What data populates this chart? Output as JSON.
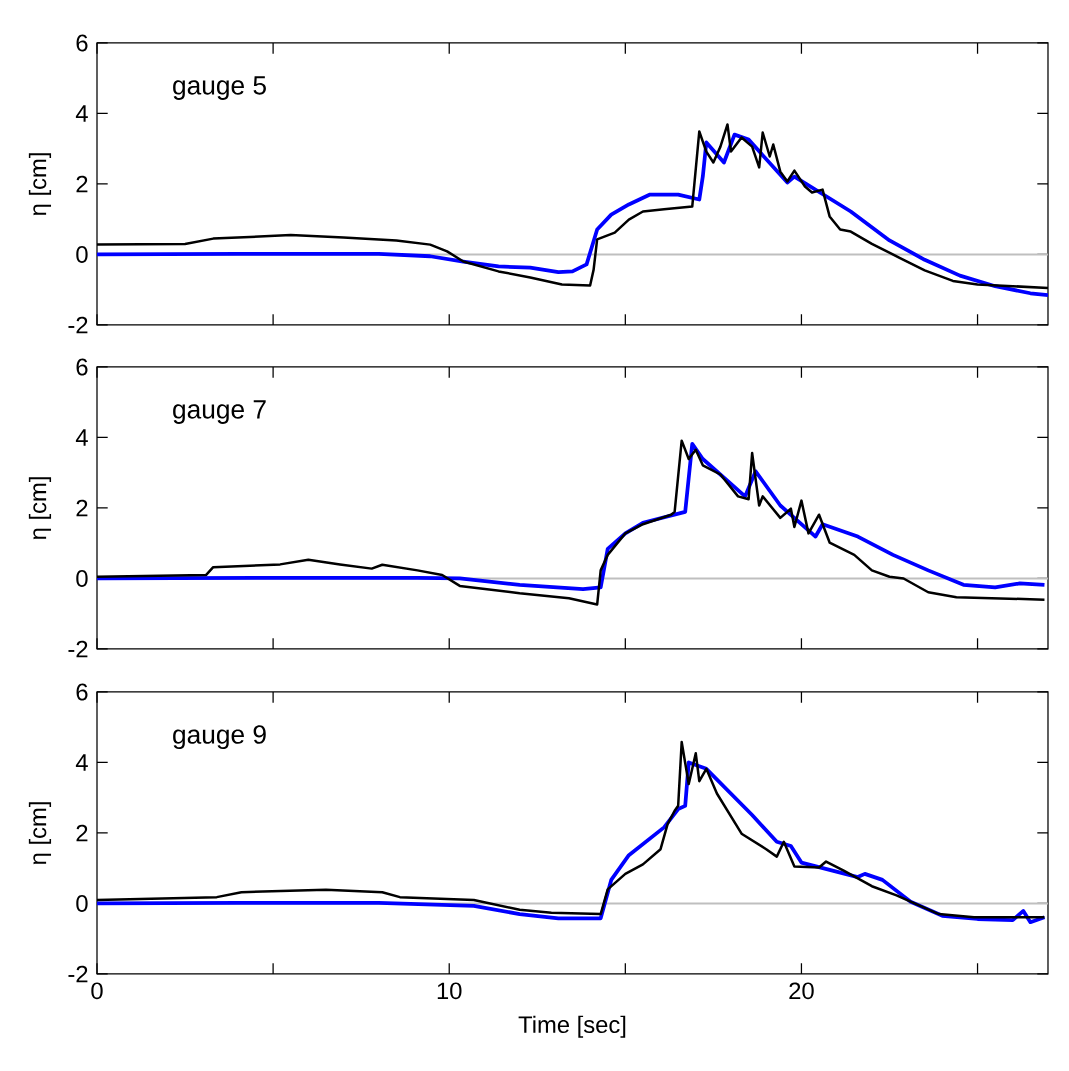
{
  "chart_data": [
    {
      "type": "line",
      "annotations": [
        "gauge 5"
      ],
      "ylabel": "η [cm]",
      "xlim": [
        0,
        27
      ],
      "ylim": [
        -2,
        6
      ],
      "xticks": [
        0,
        {
          "value": 5,
          "label": null
        },
        10,
        {
          "value": 15,
          "label": null
        },
        20,
        {
          "value": 25,
          "label": null
        }
      ],
      "yticks": [
        -2,
        0,
        2,
        4,
        6
      ],
      "tick_labels": "y",
      "ref_lines": [
        {
          "axis": "y",
          "value": 0,
          "color": "#bfbfbf"
        }
      ],
      "series": [
        {
          "color": "#000000",
          "x": [
            0,
            2.5,
            3.3,
            5.5,
            7,
            8.5,
            9.46,
            9.94,
            10.4,
            11.4,
            12.3,
            13.2,
            14.0,
            14.1,
            14.2,
            14.7,
            15.1,
            15.5,
            16.1,
            16.9,
            17.1,
            17.3,
            17.5,
            17.7,
            17.9,
            18.0,
            18.3,
            18.6,
            18.8,
            18.9,
            19.1,
            19.2,
            19.4,
            19.6,
            19.8,
            20.1,
            20.3,
            20.6,
            20.8,
            21.1,
            21.4,
            22.0,
            22.8,
            23.5,
            24.3,
            25.0,
            26.0,
            27.0
          ],
          "values": [
            0.28,
            0.3,
            0.45,
            0.55,
            0.48,
            0.4,
            0.28,
            0.09,
            -0.2,
            -0.48,
            -0.65,
            -0.85,
            -0.88,
            -0.43,
            0.43,
            0.62,
            0.99,
            1.22,
            1.28,
            1.36,
            3.49,
            2.92,
            2.61,
            3.06,
            3.69,
            2.92,
            3.32,
            3.06,
            2.47,
            3.46,
            2.78,
            3.12,
            2.35,
            2.07,
            2.38,
            1.93,
            1.76,
            1.84,
            1.08,
            0.71,
            0.65,
            0.3,
            -0.1,
            -0.45,
            -0.75,
            -0.85,
            -0.9,
            -0.95
          ]
        },
        {
          "color": "#0000ff",
          "x": [
            0,
            4,
            8,
            9.46,
            10.4,
            11.4,
            12.3,
            13.1,
            13.5,
            13.9,
            14.2,
            14.6,
            15.1,
            15.7,
            16.5,
            17.1,
            17.2,
            17.3,
            17.8,
            18.1,
            18.5,
            19.6,
            19.8,
            21.4,
            22.5,
            23.5,
            24.5,
            25.5,
            26.5,
            27.0
          ],
          "values": [
            0,
            0.02,
            0.02,
            -0.05,
            -0.2,
            -0.34,
            -0.37,
            -0.5,
            -0.48,
            -0.28,
            0.71,
            1.13,
            1.42,
            1.7,
            1.7,
            1.56,
            2.21,
            3.18,
            2.61,
            3.4,
            3.26,
            2.04,
            2.21,
            1.22,
            0.4,
            -0.15,
            -0.6,
            -0.9,
            -1.1,
            -1.15
          ]
        }
      ]
    },
    {
      "type": "line",
      "annotations": [
        "gauge 7"
      ],
      "ylabel": "η [cm]",
      "xlim": [
        0,
        27
      ],
      "ylim": [
        -2,
        6
      ],
      "xticks": [
        0,
        {
          "value": 5,
          "label": null
        },
        10,
        {
          "value": 15,
          "label": null
        },
        20,
        {
          "value": 25,
          "label": null
        }
      ],
      "yticks": [
        -2,
        0,
        2,
        4,
        6
      ],
      "tick_labels": "y",
      "ref_lines": [
        {
          "axis": "y",
          "value": 0,
          "color": "#bfbfbf"
        }
      ],
      "series": [
        {
          "color": "#000000",
          "x": [
            0,
            3.1,
            3.3,
            5.2,
            6.0,
            6.9,
            7.8,
            8.1,
            9.1,
            9.8,
            10.3,
            12.0,
            13.4,
            14.2,
            14.3,
            14.5,
            15.0,
            15.5,
            16.3,
            16.4,
            16.6,
            16.8,
            17.0,
            17.2,
            17.7,
            18.2,
            18.5,
            18.6,
            18.8,
            18.9,
            19.4,
            19.7,
            19.8,
            20.0,
            20.2,
            20.5,
            20.8,
            21.5,
            22.0,
            22.5,
            22.9,
            23.6,
            24.4,
            26.9
          ],
          "values": [
            0.05,
            0.1,
            0.32,
            0.4,
            0.53,
            0.4,
            0.28,
            0.39,
            0.23,
            0.1,
            -0.21,
            -0.42,
            -0.56,
            -0.74,
            0.23,
            0.67,
            1.28,
            1.54,
            1.81,
            1.89,
            3.91,
            3.39,
            3.65,
            3.21,
            2.95,
            2.33,
            2.25,
            3.56,
            2.07,
            2.33,
            1.72,
            1.98,
            1.46,
            2.21,
            1.28,
            1.81,
            1.02,
            0.67,
            0.23,
            0.05,
            0,
            -0.39,
            -0.53,
            -0.6
          ]
        },
        {
          "color": "#0000ff",
          "x": [
            0,
            5,
            9.1,
            10.3,
            12.0,
            13.8,
            14.3,
            14.5,
            15.0,
            15.5,
            16.7,
            16.9,
            17.2,
            18.4,
            18.7,
            19.4,
            20.4,
            20.6,
            21.6,
            22.6,
            23.6,
            24.6,
            25.5,
            26.2,
            26.9
          ],
          "values": [
            0,
            0.02,
            0.02,
            0,
            -0.18,
            -0.3,
            -0.25,
            0.84,
            1.28,
            1.58,
            1.89,
            3.82,
            3.39,
            2.33,
            3.04,
            2.07,
            1.19,
            1.54,
            1.19,
            0.67,
            0.23,
            -0.18,
            -0.25,
            -0.14,
            -0.18
          ]
        }
      ]
    },
    {
      "type": "line",
      "annotations": [
        "gauge 9"
      ],
      "ylabel": "η [cm]",
      "xlabel": "Time [sec]",
      "xlim": [
        0,
        27
      ],
      "ylim": [
        -2,
        6
      ],
      "xticks": [
        0,
        {
          "value": 5,
          "label": null
        },
        10,
        {
          "value": 15,
          "label": null
        },
        20,
        {
          "value": 25,
          "label": null
        }
      ],
      "yticks": [
        -2,
        0,
        2,
        4,
        6
      ],
      "ref_lines": [
        {
          "axis": "y",
          "value": 0,
          "color": "#bfbfbf"
        }
      ],
      "series": [
        {
          "color": "#000000",
          "x": [
            0,
            3.4,
            4.1,
            6.5,
            8.1,
            8.6,
            10.7,
            12.0,
            12.9,
            14.3,
            14.5,
            15.0,
            15.5,
            16.0,
            16.2,
            16.4,
            16.5,
            16.6,
            16.8,
            17.0,
            17.1,
            17.3,
            17.6,
            18.3,
            19.0,
            19.3,
            19.5,
            19.8,
            20.5,
            20.7,
            21.2,
            22.0,
            22.7,
            23.9,
            24.9,
            26.9
          ],
          "values": [
            0.1,
            0.18,
            0.32,
            0.39,
            0.32,
            0.18,
            0.1,
            -0.18,
            -0.26,
            -0.3,
            0.4,
            0.84,
            1.11,
            1.54,
            2.25,
            2.63,
            2.77,
            4.58,
            3.39,
            4.26,
            3.47,
            3.82,
            3.12,
            1.98,
            1.54,
            1.33,
            1.75,
            1.05,
            1.02,
            1.19,
            0.93,
            0.49,
            0.23,
            -0.3,
            -0.39,
            -0.39
          ]
        },
        {
          "color": "#0000ff",
          "x": [
            0,
            4,
            8,
            10.7,
            12.0,
            13.1,
            14.3,
            14.6,
            15.1,
            16.1,
            16.5,
            16.7,
            16.8,
            17.3,
            18.6,
            19.3,
            19.7,
            20.0,
            21.6,
            21.8,
            22.3,
            23.1,
            24.0,
            25.0,
            26.0,
            26.3,
            26.5,
            26.9
          ],
          "values": [
            0,
            0.02,
            0.02,
            -0.07,
            -0.3,
            -0.42,
            -0.42,
            0.67,
            1.37,
            2.16,
            2.68,
            2.77,
            4.0,
            3.82,
            2.51,
            1.75,
            1.63,
            1.16,
            0.75,
            0.84,
            0.67,
            0.05,
            -0.35,
            -0.44,
            -0.47,
            -0.21,
            -0.53,
            -0.39
          ]
        }
      ]
    }
  ]
}
